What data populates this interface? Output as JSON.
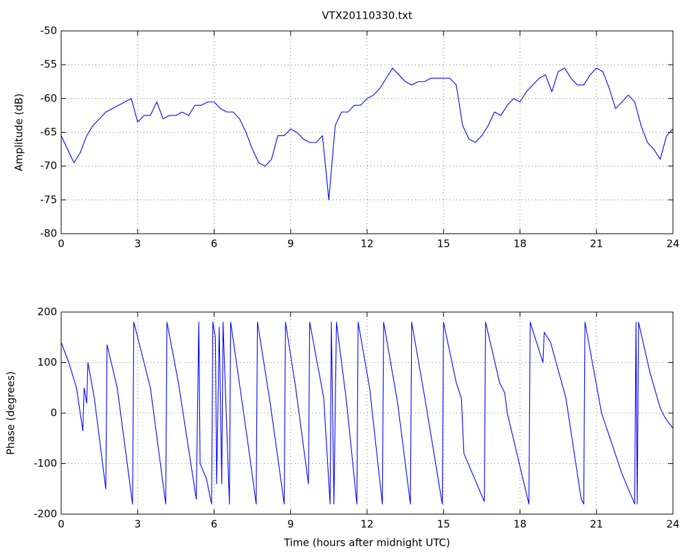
{
  "chart_data": [
    {
      "type": "line",
      "title": "VTX20110330.txt",
      "ylabel": "Amplitude (dB)",
      "xlim": [
        0,
        24
      ],
      "xticks": [
        0,
        3,
        6,
        9,
        12,
        15,
        18,
        21,
        24
      ],
      "ylim": [
        -80,
        -50
      ],
      "yticks": [
        -80,
        -75,
        -70,
        -65,
        -60,
        -55,
        -50
      ],
      "grid": true,
      "series": [
        {
          "color": "#0000ff",
          "x": [
            0,
            0.25,
            0.5,
            0.75,
            1,
            1.25,
            1.5,
            1.75,
            2,
            2.25,
            2.5,
            2.75,
            3,
            3.25,
            3.5,
            3.75,
            4,
            4.25,
            4.5,
            4.75,
            5,
            5.25,
            5.5,
            5.75,
            6,
            6.25,
            6.5,
            6.75,
            7,
            7.25,
            7.5,
            7.75,
            8,
            8.25,
            8.5,
            8.75,
            9,
            9.25,
            9.5,
            9.75,
            10,
            10.25,
            10.5,
            10.75,
            11,
            11.25,
            11.5,
            11.75,
            12,
            12.25,
            12.5,
            12.75,
            13,
            13.25,
            13.5,
            13.75,
            14,
            14.25,
            14.5,
            14.75,
            15,
            15.25,
            15.5,
            15.75,
            16,
            16.25,
            16.5,
            16.75,
            17,
            17.25,
            17.5,
            17.75,
            18,
            18.25,
            18.5,
            18.75,
            19,
            19.25,
            19.5,
            19.75,
            20,
            20.25,
            20.5,
            20.75,
            21,
            21.25,
            21.5,
            21.75,
            22,
            22.25,
            22.5,
            22.75,
            23,
            23.25,
            23.5,
            23.75,
            24
          ],
          "values": [
            -65.5,
            -67.5,
            -69.5,
            -68,
            -65.5,
            -64,
            -63,
            -62,
            -61.5,
            -61,
            -60.5,
            -60,
            -63.5,
            -62.5,
            -62.5,
            -60.5,
            -63,
            -62.5,
            -62.5,
            -62,
            -62.5,
            -61,
            -61,
            -60.5,
            -60.5,
            -61.5,
            -62,
            -62,
            -63,
            -65,
            -67.5,
            -69.5,
            -70,
            -69,
            -65.5,
            -65.5,
            -64.5,
            -65,
            -66,
            -66.5,
            -66.5,
            -65.5,
            -75,
            -64,
            -62,
            -62,
            -61,
            -61,
            -60,
            -59.5,
            -58.5,
            -57,
            -55.5,
            -56.5,
            -57.5,
            -58,
            -57.5,
            -57.5,
            -57,
            -57,
            -57,
            -57,
            -58,
            -64,
            -66,
            -66.5,
            -65.5,
            -64,
            -62,
            -62.5,
            -61,
            -60,
            -60.5,
            -59,
            -58,
            -57,
            -56.5,
            -59,
            -56,
            -55.5,
            -57,
            -58,
            -58,
            -56.5,
            -55.5,
            -56,
            -58.5,
            -61.5,
            -60.5,
            -59.5,
            -60.5,
            -64,
            -66.5,
            -67.5,
            -69,
            -65.5,
            -64.5
          ]
        }
      ]
    },
    {
      "type": "line",
      "xlabel": "Time (hours after midnight UTC)",
      "ylabel": "Phase (degrees)",
      "xlim": [
        0,
        24
      ],
      "xticks": [
        0,
        3,
        6,
        9,
        12,
        15,
        18,
        21,
        24
      ],
      "ylim": [
        -200,
        200
      ],
      "yticks": [
        -200,
        -100,
        0,
        100,
        200
      ],
      "grid": true,
      "series": [
        {
          "color": "#0000ff",
          "x": [
            0,
            0.3,
            0.6,
            0.85,
            0.9,
            1.0,
            1.05,
            1.3,
            1.75,
            1.8,
            2.2,
            2.8,
            2.85,
            3.5,
            4.1,
            4.15,
            4.6,
            5.3,
            5.4,
            5.45,
            5.7,
            5.9,
            5.95,
            6.05,
            6.1,
            6.2,
            6.3,
            6.35,
            6.6,
            6.65,
            7.3,
            7.65,
            7.7,
            8.2,
            8.75,
            8.8,
            9.2,
            9.7,
            9.75,
            10.3,
            10.55,
            10.6,
            10.7,
            10.8,
            11.2,
            11.6,
            11.65,
            12.1,
            12.6,
            12.65,
            13.2,
            13.7,
            13.75,
            14.3,
            14.95,
            15.0,
            15.5,
            15.7,
            15.8,
            16.6,
            16.65,
            17.2,
            17.4,
            17.5,
            18.35,
            18.4,
            18.9,
            18.95,
            19.2,
            19.8,
            20.4,
            20.5,
            20.55,
            21.2,
            22.0,
            22.5,
            22.55,
            22.6,
            22.65,
            23.1,
            23.5,
            23.7,
            24.0
          ],
          "values": [
            140,
            100,
            50,
            -35,
            50,
            20,
            100,
            30,
            -150,
            135,
            50,
            -180,
            180,
            50,
            -180,
            180,
            60,
            -170,
            180,
            -100,
            -130,
            -180,
            180,
            150,
            -140,
            170,
            -140,
            180,
            -180,
            180,
            -50,
            -180,
            180,
            20,
            -180,
            180,
            50,
            -140,
            180,
            30,
            -180,
            180,
            -180,
            180,
            20,
            -180,
            180,
            50,
            -180,
            180,
            20,
            -180,
            180,
            20,
            -180,
            180,
            60,
            30,
            -80,
            -175,
            180,
            60,
            40,
            0,
            -180,
            180,
            100,
            160,
            140,
            30,
            -170,
            -180,
            180,
            0,
            -120,
            -180,
            180,
            -180,
            180,
            80,
            10,
            -10,
            -30
          ]
        }
      ]
    }
  ]
}
